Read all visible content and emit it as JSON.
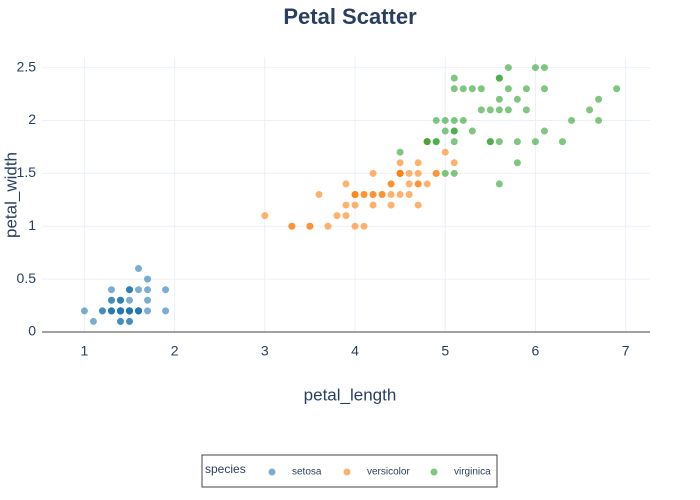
{
  "chart_data": {
    "type": "scatter",
    "title": "Petal Scatter",
    "x_label": "petal_length",
    "y_label": "petal_width",
    "legend_title": "species",
    "legend_position": "bottom",
    "grid": true,
    "opacity": 0.6,
    "xlim": [
      0.53,
      7.27
    ],
    "ylim": [
      0,
      2.6
    ],
    "xticks": [
      1,
      2,
      3,
      4,
      5,
      6,
      7
    ],
    "yticks": [
      0,
      0.5,
      1,
      1.5,
      2,
      2.5
    ],
    "series": [
      {
        "name": "setosa",
        "color": "#1f77b4",
        "x": [
          1.4,
          1.4,
          1.3,
          1.5,
          1.4,
          1.7,
          1.4,
          1.5,
          1.4,
          1.5,
          1.5,
          1.6,
          1.4,
          1.1,
          1.2,
          1.5,
          1.3,
          1.4,
          1.7,
          1.5,
          1.7,
          1.5,
          1.0,
          1.7,
          1.9,
          1.6,
          1.6,
          1.5,
          1.4,
          1.6,
          1.6,
          1.5,
          1.5,
          1.4,
          1.5,
          1.2,
          1.3,
          1.4,
          1.3,
          1.5,
          1.3,
          1.3,
          1.3,
          1.6,
          1.9,
          1.4,
          1.6,
          1.4,
          1.5,
          1.4
        ],
        "values": [
          0.2,
          0.2,
          0.2,
          0.2,
          0.2,
          0.4,
          0.3,
          0.2,
          0.2,
          0.1,
          0.2,
          0.2,
          0.1,
          0.1,
          0.2,
          0.4,
          0.4,
          0.3,
          0.3,
          0.3,
          0.2,
          0.4,
          0.2,
          0.5,
          0.2,
          0.2,
          0.4,
          0.2,
          0.2,
          0.2,
          0.2,
          0.4,
          0.1,
          0.2,
          0.2,
          0.2,
          0.2,
          0.1,
          0.2,
          0.2,
          0.3,
          0.3,
          0.2,
          0.6,
          0.4,
          0.3,
          0.2,
          0.2,
          0.2,
          0.2
        ]
      },
      {
        "name": "versicolor",
        "color": "#ff7f0e",
        "x": [
          4.7,
          4.5,
          4.9,
          4.0,
          4.6,
          4.5,
          4.7,
          3.3,
          4.6,
          3.9,
          3.5,
          4.2,
          4.0,
          4.7,
          3.6,
          4.4,
          4.5,
          4.1,
          4.5,
          3.9,
          4.8,
          4.0,
          4.9,
          4.7,
          4.3,
          4.4,
          4.8,
          5.0,
          4.5,
          3.5,
          3.8,
          3.7,
          3.9,
          5.1,
          4.5,
          4.5,
          4.7,
          4.4,
          4.1,
          4.0,
          4.4,
          4.6,
          4.0,
          3.3,
          4.2,
          4.2,
          4.2,
          4.3,
          3.0,
          4.1
        ],
        "values": [
          1.4,
          1.5,
          1.5,
          1.3,
          1.5,
          1.3,
          1.6,
          1.0,
          1.3,
          1.4,
          1.0,
          1.5,
          1.0,
          1.4,
          1.3,
          1.4,
          1.5,
          1.0,
          1.5,
          1.1,
          1.8,
          1.3,
          1.5,
          1.2,
          1.3,
          1.4,
          1.4,
          1.7,
          1.5,
          1.0,
          1.1,
          1.0,
          1.2,
          1.6,
          1.5,
          1.6,
          1.5,
          1.3,
          1.3,
          1.3,
          1.2,
          1.4,
          1.2,
          1.0,
          1.3,
          1.2,
          1.3,
          1.3,
          1.1,
          1.3
        ]
      },
      {
        "name": "virginica",
        "color": "#2ca02c",
        "x": [
          6.0,
          5.1,
          5.9,
          5.6,
          5.8,
          6.6,
          4.5,
          6.3,
          5.8,
          6.1,
          5.1,
          5.3,
          5.5,
          5.0,
          5.1,
          5.3,
          5.5,
          6.7,
          6.9,
          5.0,
          5.7,
          4.9,
          6.7,
          4.9,
          5.7,
          6.0,
          4.8,
          4.9,
          5.6,
          5.8,
          6.1,
          6.4,
          5.6,
          5.1,
          5.6,
          6.1,
          5.6,
          5.5,
          4.8,
          5.4,
          5.6,
          5.1,
          5.1,
          5.9,
          5.7,
          5.2,
          5.0,
          5.2,
          5.4,
          5.1
        ],
        "values": [
          2.5,
          1.9,
          2.1,
          1.8,
          2.2,
          2.1,
          1.7,
          1.8,
          1.8,
          2.5,
          2.0,
          1.9,
          2.1,
          2.0,
          2.4,
          2.3,
          1.8,
          2.2,
          2.3,
          1.5,
          2.3,
          2.0,
          2.0,
          1.8,
          2.1,
          1.8,
          1.8,
          1.8,
          2.1,
          1.6,
          1.9,
          2.0,
          2.2,
          1.5,
          1.4,
          2.3,
          2.4,
          1.8,
          1.8,
          2.1,
          2.4,
          2.3,
          1.9,
          2.3,
          2.5,
          2.3,
          1.9,
          2.0,
          2.3,
          1.8
        ]
      }
    ]
  }
}
